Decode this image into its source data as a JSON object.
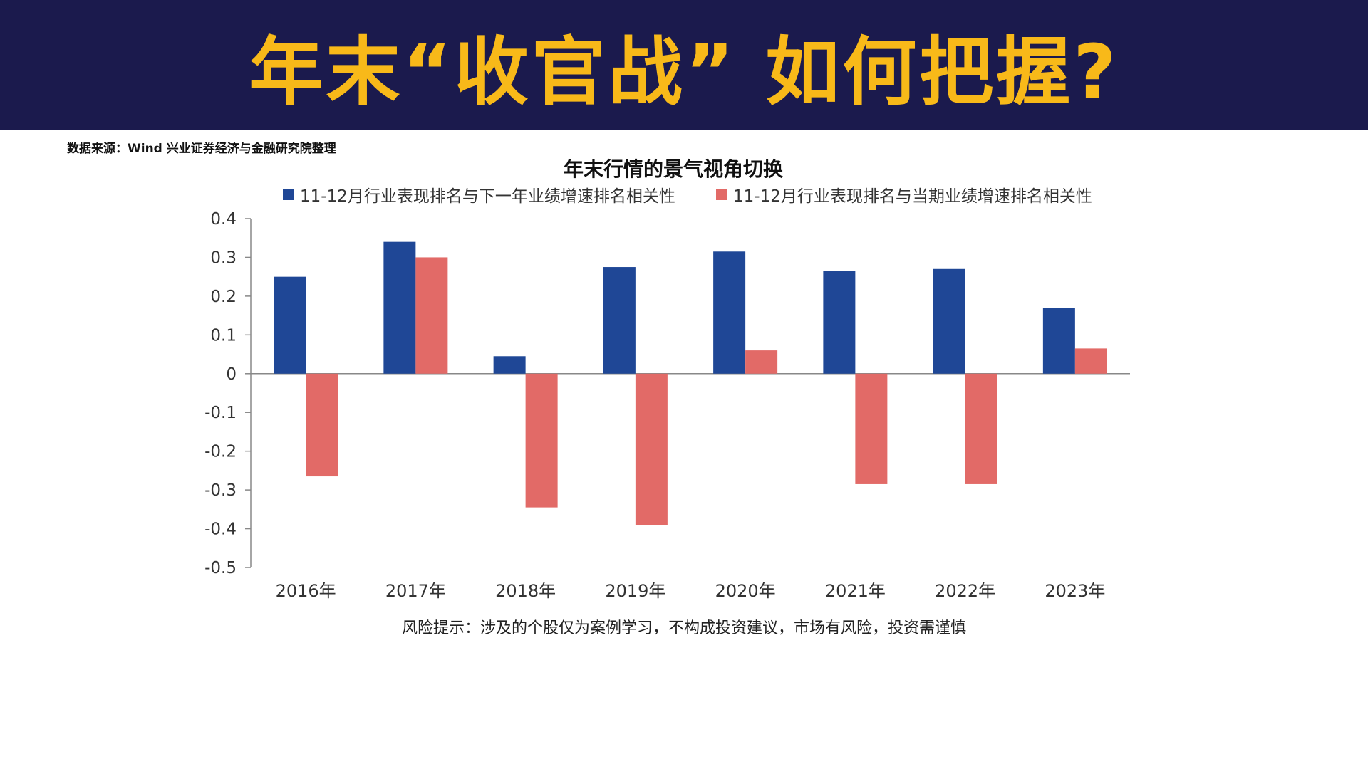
{
  "header": {
    "title": "年末“收官战” 如何把握?"
  },
  "source_note": "数据来源：Wind 兴业证券经济与金融研究院整理",
  "risk_note": "风险提示：涉及的个股仅为案例学习，不构成投资建议，市场有风险，投资需谨慎",
  "chart_data": {
    "type": "bar",
    "title": "年末行情的景气视角切换",
    "categories": [
      "2016年",
      "2017年",
      "2018年",
      "2019年",
      "2020年",
      "2021年",
      "2022年",
      "2023年"
    ],
    "series": [
      {
        "name": "11-12月行业表现排名与下一年业绩增速排名相关性",
        "color": "#1f4796",
        "values": [
          0.25,
          0.34,
          0.045,
          0.275,
          0.315,
          0.265,
          0.27,
          0.17
        ]
      },
      {
        "name": "11-12月行业表现排名与当期业绩增速排名相关性",
        "color": "#e26a67",
        "values": [
          -0.265,
          0.3,
          -0.345,
          -0.39,
          0.06,
          -0.285,
          -0.285,
          0.065
        ]
      }
    ],
    "ylim": [
      -0.5,
      0.4
    ],
    "yticks": [
      0.4,
      0.3,
      0.2,
      0.1,
      0,
      -0.1,
      -0.2,
      -0.3,
      -0.4,
      -0.5
    ],
    "ytick_labels": [
      "0.4",
      "0.3",
      "0.2",
      "0.1",
      "0",
      "-0.1",
      "-0.2",
      "-0.3",
      "-0.4",
      "-0.5"
    ],
    "legend_position": "top",
    "grid": false
  }
}
